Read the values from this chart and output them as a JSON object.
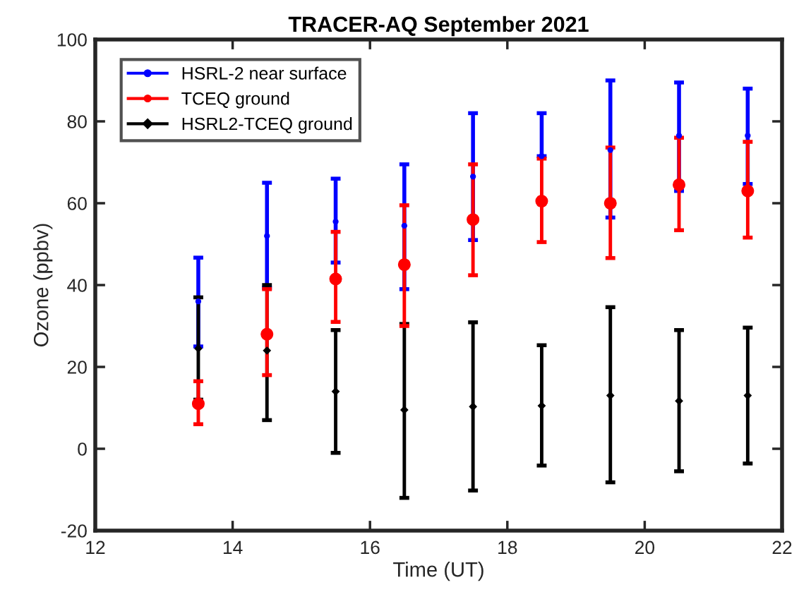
{
  "chart_data": {
    "type": "scatter",
    "title": "TRACER-AQ September 2021",
    "xlabel": "Time (UT)",
    "ylabel": "Ozone (ppbv)",
    "x": [
      13.5,
      14.5,
      15.5,
      16.5,
      17.5,
      18.5,
      19.5,
      20.5,
      21.5
    ],
    "xlim": [
      12,
      22
    ],
    "xticks": [
      12,
      14,
      16,
      18,
      20,
      22
    ],
    "ylim": [
      -20,
      100
    ],
    "yticks": [
      -20,
      0,
      20,
      40,
      60,
      80,
      100
    ],
    "grid": false,
    "legend": "top left",
    "series": [
      {
        "name": "HSRL-2 near surface",
        "color": "#0000ff",
        "marker": "circle",
        "values": [
          36,
          52,
          55.5,
          54.5,
          66.5,
          71.5,
          73,
          76.5,
          76.5
        ],
        "errors": [
          [
            25,
            46.7
          ],
          [
            39.3,
            65
          ],
          [
            45.5,
            66
          ],
          [
            39,
            69.5
          ],
          [
            51,
            82
          ],
          [
            71.5,
            82
          ],
          [
            56.5,
            90
          ],
          [
            63,
            89.5
          ],
          [
            64.7,
            88
          ]
        ]
      },
      {
        "name": "TCEQ ground",
        "color": "#ff0000",
        "marker": "circle",
        "values": [
          11,
          28,
          41.5,
          45,
          56,
          60.5,
          60,
          64.5,
          63
        ],
        "errors": [
          [
            6,
            16.5
          ],
          [
            18,
            39
          ],
          [
            31,
            53
          ],
          [
            30,
            59.5
          ],
          [
            42.4,
            69.5
          ],
          [
            50.5,
            70.9
          ],
          [
            46.6,
            73.6
          ],
          [
            53.4,
            76
          ],
          [
            51.6,
            75
          ]
        ]
      },
      {
        "name": "HSRL2-TCEQ ground",
        "color": "#000000",
        "marker": "diamond",
        "values": [
          24.5,
          24,
          14,
          9.5,
          10.3,
          10.5,
          13,
          11.7,
          13
        ],
        "errors": [
          [
            12,
            37
          ],
          [
            7,
            40
          ],
          [
            -1,
            29
          ],
          [
            -12,
            30.5
          ],
          [
            -10.2,
            30.9
          ],
          [
            -4.1,
            25.3
          ],
          [
            -8.2,
            34.6
          ],
          [
            -5.5,
            29
          ],
          [
            -3.6,
            29.6
          ]
        ]
      }
    ]
  }
}
